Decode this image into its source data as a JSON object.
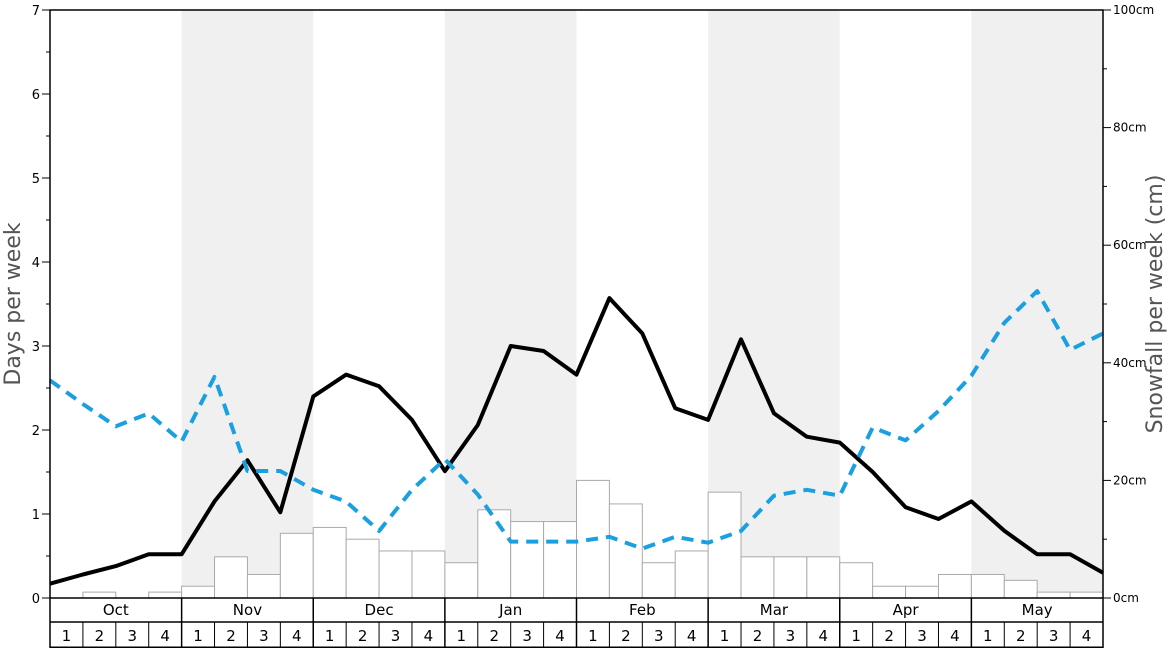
{
  "chart_data": {
    "type": "bar",
    "ylabel": "Days per week",
    "y2label": "Snowfall per week (cm)",
    "ylim": [
      0,
      7
    ],
    "y2lim": [
      0,
      100
    ],
    "yticks": [
      "0",
      "1",
      "2",
      "3",
      "4",
      "5",
      "6",
      "7"
    ],
    "y2ticks": [
      "0cm",
      "20cm",
      "40cm",
      "60cm",
      "80cm",
      "100cm"
    ],
    "months": [
      "Oct",
      "Nov",
      "Dec",
      "Jan",
      "Feb",
      "Mar",
      "Apr",
      "May"
    ],
    "weeks": [
      "1",
      "2",
      "3",
      "4"
    ],
    "colors": {
      "bar_fill": "#ffffff",
      "bar_stroke": "#aaaaaa",
      "solid_line": "#000000",
      "dashed_line": "#1a9fe0",
      "shade": "#f0f0f0"
    },
    "series": [
      {
        "type": "bar",
        "axis": "left",
        "values": [
          0,
          0.07,
          0,
          0.07,
          0.14,
          0.49,
          0.28,
          0.77,
          0.84,
          0.7,
          0.56,
          0.56,
          0.42,
          1.05,
          0.91,
          0.91,
          1.4,
          1.12,
          0.42,
          0.56,
          1.26,
          0.49,
          0.49,
          0.49,
          0.42,
          0.14,
          0.14,
          0.28,
          0.28,
          0.21,
          0.07,
          0.07
        ]
      },
      {
        "type": "line",
        "axis": "left",
        "style": "solid",
        "values": [
          0.17,
          0.28,
          0.38,
          0.52,
          0.52,
          1.15,
          1.64,
          1.02,
          2.4,
          2.66,
          2.52,
          2.12,
          1.51,
          2.06,
          3.0,
          2.94,
          2.66,
          3.57,
          3.15,
          2.26,
          2.12,
          3.08,
          2.2,
          1.92,
          1.85,
          1.5,
          1.08,
          0.94,
          1.15,
          0.8,
          0.52,
          0.52,
          0.3
        ]
      },
      {
        "type": "line",
        "axis": "right",
        "style": "dashed",
        "values": [
          37,
          33,
          29.2,
          31.4,
          26.6,
          37.6,
          21.6,
          21.6,
          18.4,
          16.4,
          11.4,
          18.4,
          23.6,
          17.6,
          9.6,
          9.6,
          9.6,
          10.4,
          8.4,
          10.4,
          9.4,
          11.4,
          17.4,
          18.4,
          17.4,
          29.0,
          26.8,
          31.8,
          37.8,
          46.8,
          52.2,
          42.2,
          45.0
        ]
      }
    ]
  }
}
